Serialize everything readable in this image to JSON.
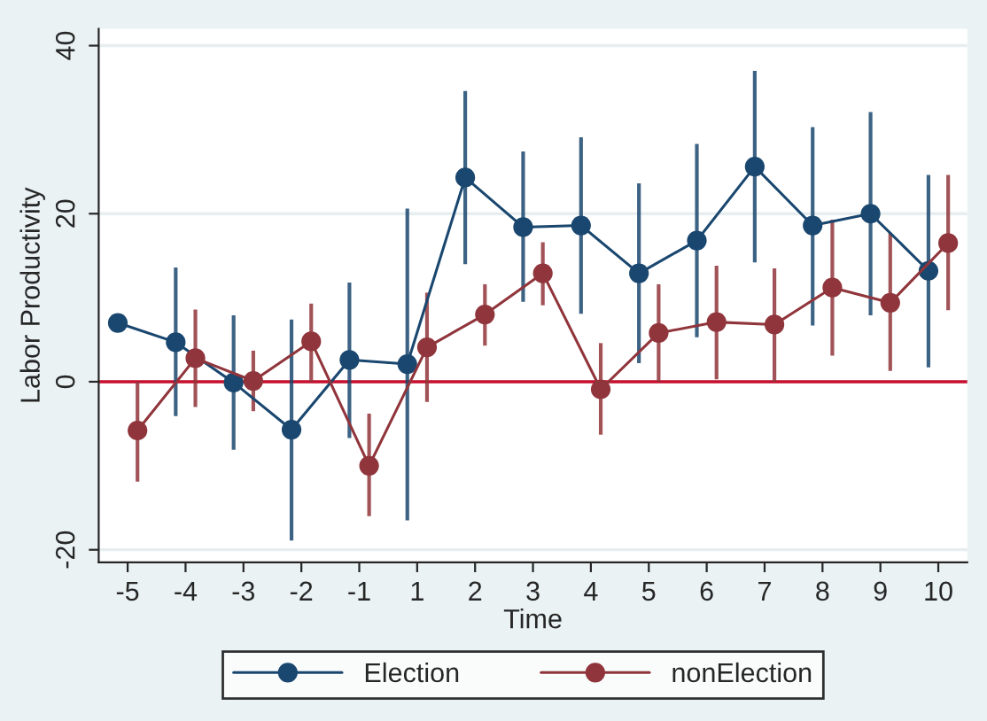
{
  "chart_data": {
    "type": "line",
    "xlabel": "Time",
    "ylabel": "Labor Productivity",
    "categories": [
      "-5",
      "-4",
      "-3",
      "-2",
      "-1",
      "1",
      "2",
      "3",
      "4",
      "5",
      "6",
      "7",
      "8",
      "9",
      "10"
    ],
    "series": [
      {
        "name": "Election",
        "color": "#1a476f",
        "values": [
          7.0,
          4.7,
          -0.1,
          -5.7,
          2.6,
          2.1,
          24.3,
          18.4,
          18.6,
          12.9,
          16.8,
          25.6,
          18.6,
          20.0,
          13.2
        ],
        "errors": [
          null,
          [
            -4.1,
            13.6
          ],
          [
            -8.1,
            7.9
          ],
          [
            -18.9,
            7.4
          ],
          [
            -6.7,
            11.8
          ],
          [
            -16.5,
            20.6
          ],
          [
            14.0,
            34.6
          ],
          [
            9.5,
            27.4
          ],
          [
            8.1,
            29.1
          ],
          [
            2.2,
            23.6
          ],
          [
            5.3,
            28.3
          ],
          [
            14.2,
            37.0
          ],
          [
            6.7,
            30.3
          ],
          [
            7.9,
            32.1
          ],
          [
            1.7,
            24.6
          ]
        ]
      },
      {
        "name": "nonElection",
        "color": "#90353b",
        "values": [
          -5.8,
          2.8,
          0.1,
          4.8,
          -10.0,
          4.1,
          8.0,
          12.9,
          -0.9,
          5.8,
          7.1,
          6.8,
          11.2,
          9.4,
          16.5
        ],
        "errors": [
          [
            -11.9,
            0.0
          ],
          [
            -3.0,
            8.6
          ],
          [
            -3.5,
            3.7
          ],
          [
            0.0,
            9.3
          ],
          [
            -16.0,
            -3.8
          ],
          [
            -2.4,
            10.6
          ],
          [
            4.3,
            11.6
          ],
          [
            9.1,
            16.6
          ],
          [
            -6.3,
            4.6
          ],
          [
            0.0,
            11.6
          ],
          [
            0.3,
            13.8
          ],
          [
            0.0,
            13.5
          ],
          [
            3.1,
            19.3
          ],
          [
            1.3,
            17.7
          ],
          [
            8.5,
            24.6
          ]
        ]
      }
    ],
    "ylim": [
      -21.5,
      42
    ],
    "yticks": [
      -20,
      0,
      20,
      40
    ],
    "grid": "y",
    "marker": "circle",
    "line_style": "solid",
    "ref_lines": [
      {
        "axis": "y",
        "value": 0,
        "color": "#c8102e"
      }
    ],
    "legend": "bottom"
  }
}
